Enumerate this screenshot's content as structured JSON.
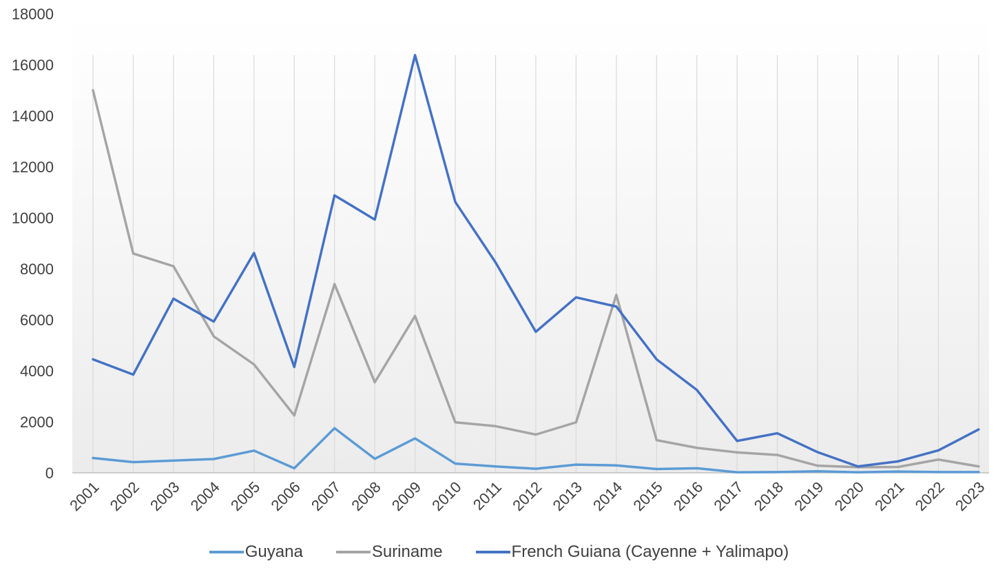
{
  "chart_data": {
    "type": "line",
    "title": "",
    "xlabel": "",
    "ylabel": "",
    "ylim": [
      0,
      18000
    ],
    "yticks": [
      0,
      2000,
      4000,
      6000,
      8000,
      10000,
      12000,
      14000,
      16000,
      18000
    ],
    "grid": "vertical",
    "legend_position": "bottom",
    "categories": [
      "2001",
      "2002",
      "2003",
      "2004",
      "2005",
      "2006",
      "2007",
      "2008",
      "2009",
      "2010",
      "2011",
      "2012",
      "2013",
      "2014",
      "2015",
      "2016",
      "2017",
      "2018",
      "2019",
      "2020",
      "2021",
      "2022",
      "2023"
    ],
    "series": [
      {
        "name": "Guyana",
        "color": "#5b9bd5",
        "values": [
          580,
          420,
          480,
          540,
          870,
          180,
          1750,
          550,
          1350,
          360,
          250,
          160,
          320,
          290,
          150,
          180,
          20,
          30,
          60,
          20,
          50,
          30,
          30
        ]
      },
      {
        "name": "Suriname",
        "color": "#a5a5a5",
        "values": [
          15000,
          8600,
          8100,
          5350,
          4250,
          2250,
          7400,
          3550,
          6150,
          1980,
          1830,
          1500,
          1980,
          6980,
          1280,
          980,
          800,
          700,
          280,
          220,
          230,
          520,
          250
        ]
      },
      {
        "name": "French Guiana (Cayenne + Yalimapo)",
        "color": "#4472c4",
        "values": [
          4450,
          3850,
          6830,
          5930,
          8620,
          4150,
          10880,
          9930,
          16380,
          10620,
          8250,
          5530,
          6880,
          6520,
          4450,
          3250,
          1250,
          1550,
          810,
          250,
          450,
          880,
          1700
        ]
      }
    ]
  }
}
